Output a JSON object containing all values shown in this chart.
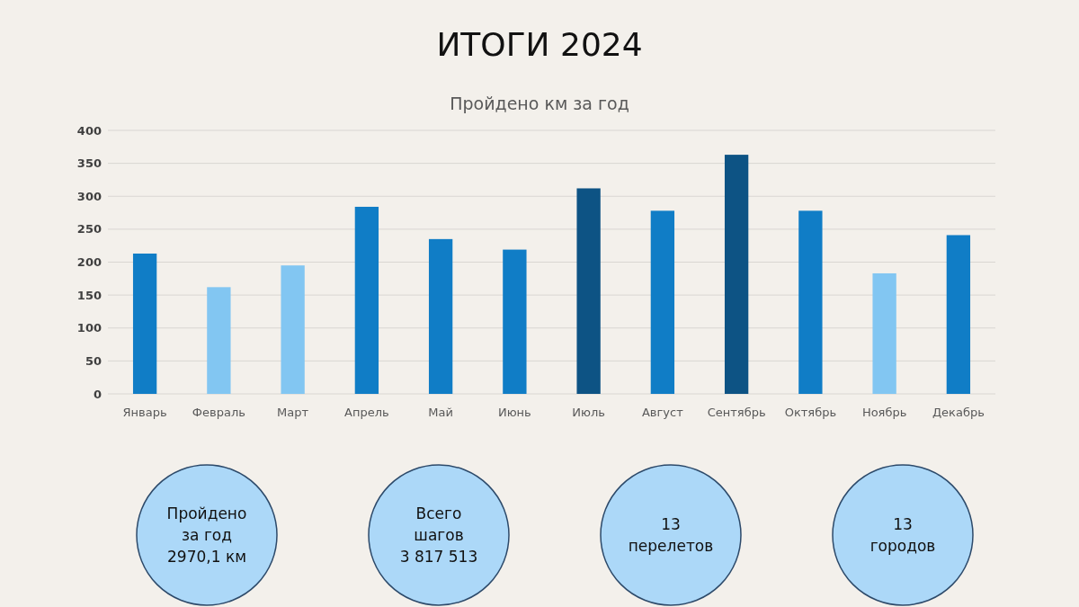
{
  "chart_data": {
    "type": "bar",
    "title": "ИТОГИ 2024",
    "subtitle": "Пройдено км за год",
    "categories": [
      "Январь",
      "Февраль",
      "Март",
      "Апрель",
      "Май",
      "Июнь",
      "Июль",
      "Август",
      "Сентябрь",
      "Октябрь",
      "Ноябрь",
      "Декабрь"
    ],
    "values": [
      213,
      162,
      195,
      284,
      235,
      219,
      312,
      278,
      363,
      278,
      183,
      241
    ],
    "colors": [
      "#107dc6",
      "#82c6f2",
      "#82c6f2",
      "#107dc6",
      "#107dc6",
      "#107dc6",
      "#0d5384",
      "#107dc6",
      "#0d5384",
      "#107dc6",
      "#82c6f2",
      "#107dc6"
    ],
    "ylim": [
      0,
      400
    ],
    "yticks": [
      0,
      50,
      100,
      150,
      200,
      250,
      300,
      350,
      400
    ],
    "grid": "y",
    "annotations": [
      "Пройдено\nза год\n2970,1 км",
      "Всего\nшагов\n3 817 513",
      "13\nперелетов",
      "13\nгородов"
    ]
  }
}
